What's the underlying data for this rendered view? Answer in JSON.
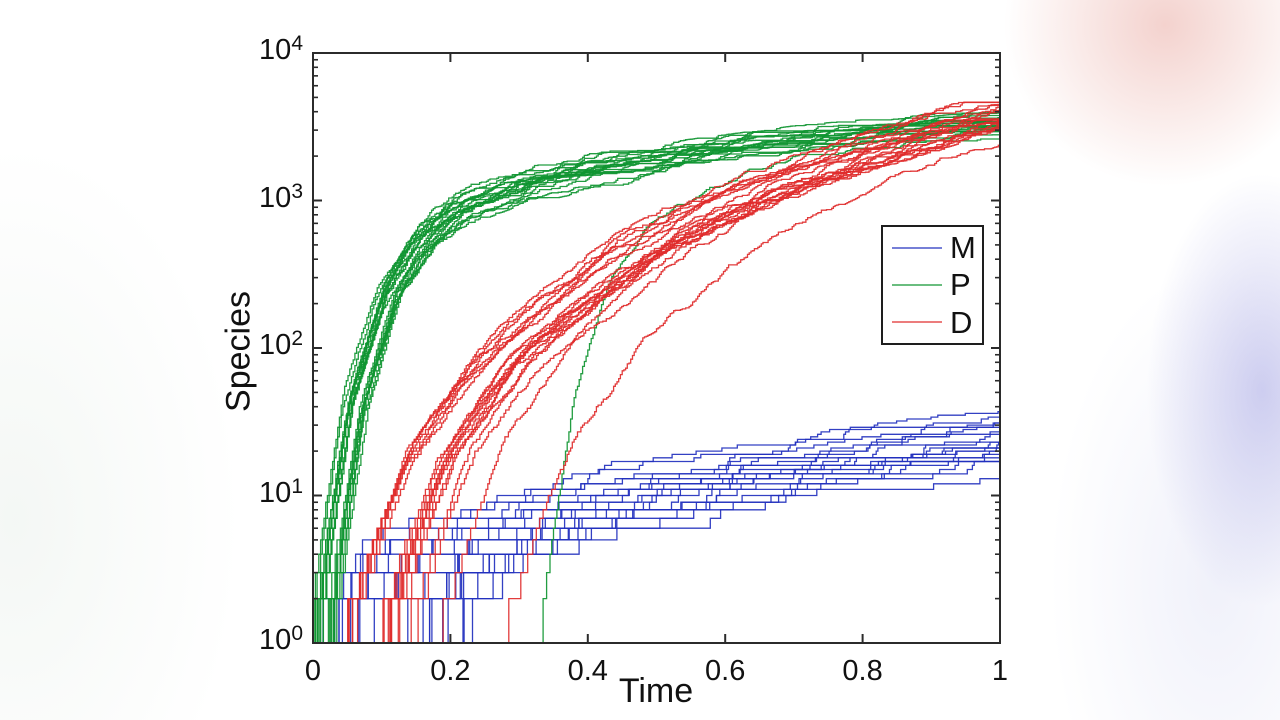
{
  "figure": {
    "title": "",
    "y_tick_base": "10"
  },
  "chart_data": {
    "type": "line",
    "subtype": "stochastic-trajectories-staircase",
    "title": "",
    "xlabel": "Time",
    "ylabel": "Species",
    "x_axis": {
      "min": 0,
      "max": 1,
      "tick_values": [
        0,
        0.2,
        0.4,
        0.6,
        0.8,
        1
      ],
      "tick_labels": [
        "0",
        "0.2",
        "0.4",
        "0.6",
        "0.8",
        "1"
      ]
    },
    "y_axis": {
      "scale": "log10",
      "min": 1,
      "max": 10000,
      "tick_exponents": [
        "0",
        "1",
        "2",
        "3",
        "4"
      ],
      "tick_labels": [
        "10^0",
        "10^1",
        "10^2",
        "10^3",
        "10^4"
      ],
      "minor_ticks_per_decade": [
        2,
        3,
        4,
        5,
        6,
        7,
        8,
        9
      ]
    },
    "grid": false,
    "legend_position": "right-middle",
    "frame_color": "#2b2b2b",
    "series": [
      {
        "name": "M",
        "color": "#2230be",
        "n_trajectories": 20,
        "style": "staircase",
        "median_t": [
          0,
          0.05,
          0.1,
          0.2,
          0.3,
          0.4,
          0.5,
          0.6,
          0.7,
          0.8,
          0.9,
          1.0
        ],
        "median_log10": [
          0,
          0.45,
          0.6,
          0.78,
          0.9,
          1.0,
          1.08,
          1.15,
          1.21,
          1.28,
          1.34,
          1.4
        ],
        "median_value": [
          1,
          3,
          4,
          6,
          8,
          10,
          12,
          14,
          16,
          19,
          22,
          25
        ],
        "value_range_at_t1": [
          13,
          34
        ],
        "shift_minus": 0.0,
        "shift_plus": 0.25,
        "level_jitter": 0.13,
        "walk_step": 0.03,
        "walk_max": 0.09,
        "outlier_shifts": []
      },
      {
        "name": "P",
        "color": "#0f9531",
        "n_trajectories": 20,
        "style": "staircase",
        "median_t": [
          0,
          0.02,
          0.05,
          0.1,
          0.15,
          0.2,
          0.3,
          0.4,
          0.5,
          0.6,
          0.7,
          0.8,
          0.9,
          1.0
        ],
        "median_log10": [
          0,
          0.7,
          1.6,
          2.35,
          2.72,
          2.92,
          3.1,
          3.2,
          3.27,
          3.33,
          3.39,
          3.43,
          3.47,
          3.5
        ],
        "median_value": [
          1,
          5,
          40,
          220,
          520,
          830,
          1260,
          1580,
          1860,
          2140,
          2450,
          2690,
          2950,
          3160
        ],
        "value_range_at_t1": [
          2500,
          4000
        ],
        "shift_minus": 0.012,
        "shift_plus": 0.03,
        "level_jitter": 0.1,
        "walk_step": 0.012,
        "walk_max": 0.05,
        "outlier_shifts": [
          0.33
        ]
      },
      {
        "name": "D",
        "color": "#e02b2b",
        "n_trajectories": 20,
        "style": "staircase",
        "median_t": [
          0.1,
          0.15,
          0.2,
          0.3,
          0.4,
          0.5,
          0.6,
          0.7,
          0.8,
          0.9,
          1.0
        ],
        "median_log10": [
          0,
          0.7,
          1.3,
          1.95,
          2.35,
          2.7,
          2.95,
          3.15,
          3.3,
          3.45,
          3.6
        ],
        "median_value": [
          1,
          5,
          20,
          90,
          220,
          500,
          890,
          1410,
          2000,
          2820,
          4000
        ],
        "value_range_at_t1": [
          2600,
          5500
        ],
        "shift_minus": 0.07,
        "shift_plus": 0.08,
        "level_jitter": 0.1,
        "walk_step": 0.012,
        "walk_max": 0.05,
        "outlier_shifts": [
          0.18
        ]
      }
    ]
  }
}
